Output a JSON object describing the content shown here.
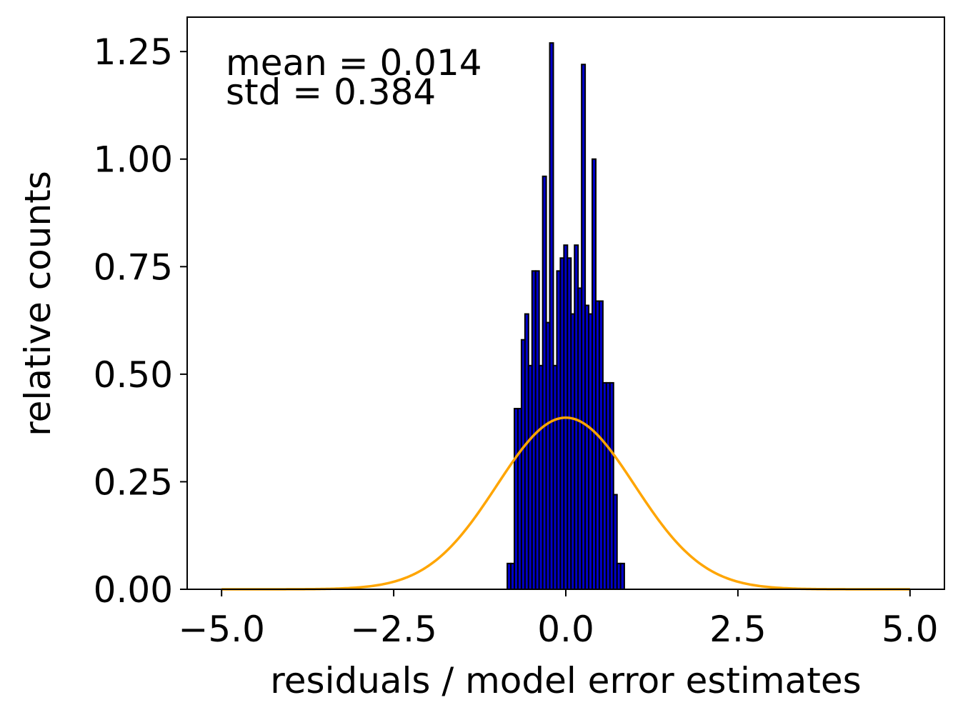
{
  "chart_data": {
    "type": "bar",
    "xlabel": "residuals / model error estimates",
    "ylabel": "relative counts",
    "xlim": [
      -5.5,
      5.5
    ],
    "ylim": [
      0,
      1.33
    ],
    "xticks": [
      -5.0,
      -2.5,
      0.0,
      2.5,
      5.0
    ],
    "xtick_labels": [
      "−5.0",
      "−2.5",
      "0.0",
      "2.5",
      "5.0"
    ],
    "yticks": [
      0.0,
      0.25,
      0.5,
      0.75,
      1.0,
      1.25
    ],
    "ytick_labels": [
      "0.00",
      "0.25",
      "0.50",
      "0.75",
      "1.00",
      "1.25"
    ],
    "grid": false,
    "annotations": {
      "mean": "mean = 0.014",
      "std": "std = 0.384"
    },
    "histogram": {
      "bin_edges": [
        -0.85,
        -0.7986,
        -0.7471,
        -0.6957,
        -0.6443,
        -0.5929,
        -0.5414,
        -0.49,
        -0.4386,
        -0.3871,
        -0.3357,
        -0.2843,
        -0.2329,
        -0.1814,
        -0.13,
        -0.0786,
        -0.0271,
        0.0243,
        0.0757,
        0.1271,
        0.1786,
        0.23,
        0.2814,
        0.3329,
        0.3843,
        0.4357,
        0.4871,
        0.5386,
        0.59,
        0.6414,
        0.6929,
        0.7443,
        0.7957,
        0.85
      ],
      "values": [
        0.06,
        0.06,
        0.42,
        0.42,
        0.58,
        0.64,
        0.52,
        0.74,
        0.74,
        0.52,
        0.96,
        0.62,
        1.27,
        0.52,
        0.74,
        0.77,
        0.8,
        0.77,
        0.64,
        0.8,
        0.7,
        1.22,
        0.66,
        0.64,
        1.0,
        0.67,
        0.67,
        0.48,
        0.48,
        0.48,
        0.22,
        0.06,
        0.06
      ],
      "fill_color": "#0000cc",
      "edge_color": "#000000"
    },
    "series": [
      {
        "curve": "normal-pdf",
        "mean": 0,
        "std": 1,
        "x_range": [
          -5,
          5
        ],
        "color": "#ffa500"
      }
    ]
  }
}
